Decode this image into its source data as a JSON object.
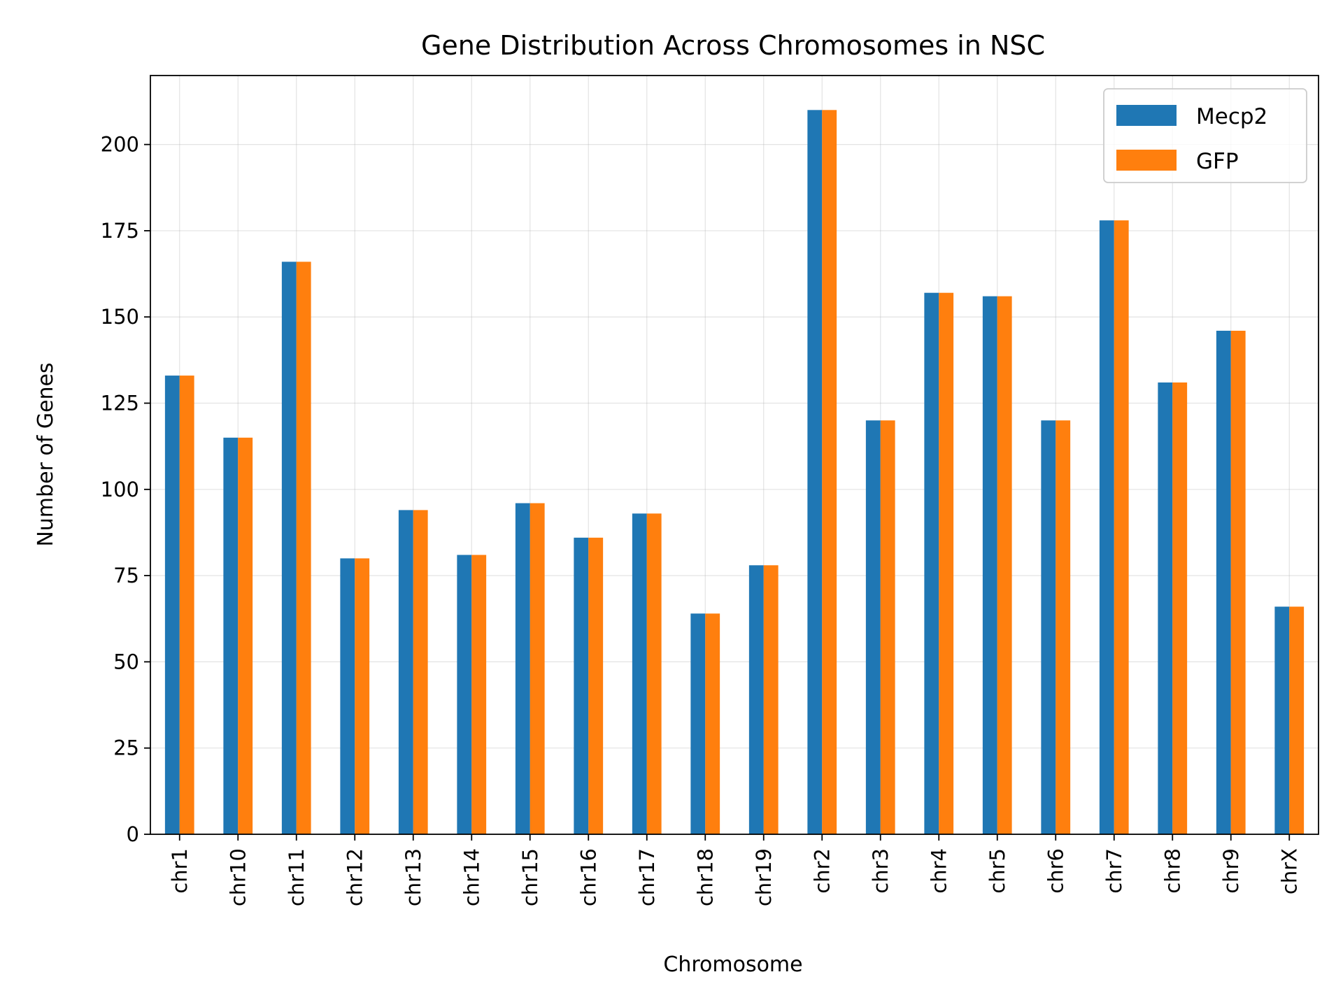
{
  "chart_data": {
    "type": "bar",
    "title": "Gene Distribution Across Chromosomes in NSC",
    "xlabel": "Chromosome",
    "ylabel": "Number of Genes",
    "categories": [
      "chr1",
      "chr10",
      "chr11",
      "chr12",
      "chr13",
      "chr14",
      "chr15",
      "chr16",
      "chr17",
      "chr18",
      "chr19",
      "chr2",
      "chr3",
      "chr4",
      "chr5",
      "chr6",
      "chr7",
      "chr8",
      "chr9",
      "chrX"
    ],
    "series": [
      {
        "name": "Mecp2",
        "color": "#1f77b4",
        "values": [
          133,
          115,
          166,
          80,
          94,
          81,
          96,
          86,
          93,
          64,
          78,
          210,
          120,
          157,
          156,
          120,
          178,
          131,
          146,
          66
        ]
      },
      {
        "name": "GFP",
        "color": "#ff7f0e",
        "values": [
          133,
          115,
          166,
          80,
          94,
          81,
          96,
          86,
          93,
          64,
          78,
          210,
          120,
          157,
          156,
          120,
          178,
          131,
          146,
          66
        ]
      }
    ],
    "ylim": [
      0,
      220
    ],
    "yticks": [
      0,
      25,
      50,
      75,
      100,
      125,
      150,
      175,
      200
    ],
    "grid": true,
    "legend_position": "top-right"
  }
}
